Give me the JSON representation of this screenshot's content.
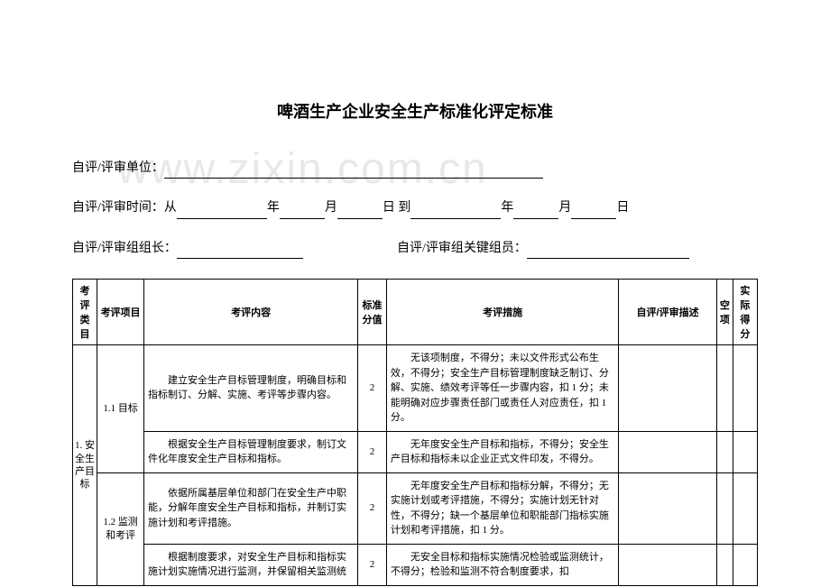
{
  "watermark": "www.zixin.com.cn",
  "title": "啤酒生产企业安全生产标准化评定标准",
  "form": {
    "unit_label": "自评/评审单位：",
    "time_label": "自评/评审时间：从",
    "year": "年",
    "month": "月",
    "day": "日",
    "to": "到",
    "leader_label": "自评/评审组组长：",
    "member_label": "自评/评审组关键组员："
  },
  "headers": {
    "category": "考评类目",
    "item": "考评项目",
    "content": "考评内容",
    "std_score": "标准分值",
    "measure": "考评措施",
    "desc": "自评/评审描述",
    "empty": "空项",
    "actual": "实际得分"
  },
  "rows": {
    "cat1": "1. 安全生产目标",
    "item11": "1.1 目标",
    "item12": "1.2 监测和考评",
    "r1_content": "建立安全生产目标管理制度，明确目标和指标制订、分解、实施、考评等步骤内容。",
    "r1_score": "2",
    "r1_measure": "无该项制度，不得分；未以文件形式公布生效，不得分；安全生产目标管理制度缺乏制订、分解、实施、绩效考评等任一步骤内容，扣 1 分；未能明确对应步骤责任部门或责任人对应责任，扣 1 分。",
    "r2_content": "根据安全生产目标管理制度要求，制订文件化年度安全生产目标和指标。",
    "r2_score": "2",
    "r2_measure": "无年度安全生产目标和指标，不得分；安全生产目标和指标未以企业正式文件印发，不得分。",
    "r3_content": "依据所属基层单位和部门在安全生产中职能，分解年度安全生产目标和指标，并制订实施计划和考评措施。",
    "r3_score": "2",
    "r3_measure": "无年度安全生产目标和指标分解，不得分；无实施计划或考评措施，不得分；实施计划无针对性，不得分；缺一个基层单位和职能部门指标实施计划和考评措施，扣 1 分。",
    "r4_content": "根据制度要求，对安全生产目标和指标实施计划实施情况进行监测，并保留相关监测统",
    "r4_score": "2",
    "r4_measure": "无安全目标和指标实施情况检验或监测统计，不得分；检验和监测不符合制度要求，扣"
  }
}
